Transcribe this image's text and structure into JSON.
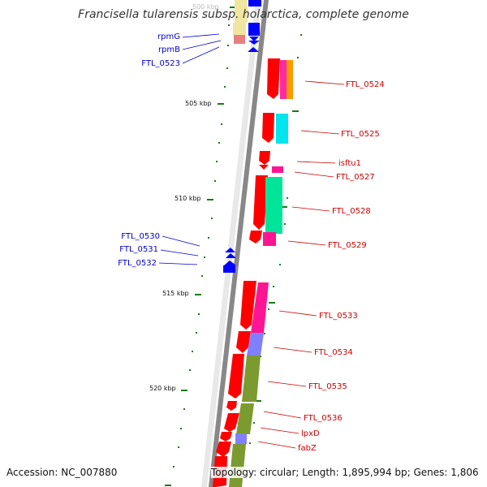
{
  "title": "Francisella tularensis subsp. holarctica, complete genome",
  "footer": {
    "accession": "Accession: NC_007880",
    "topology": "Topology: circular; Length: 1,895,994 bp; Genes: 1,806"
  },
  "colors": {
    "backbone": "#888888",
    "tick": "#1a7a1a",
    "gene_forward": "#ff0000",
    "left_label": "#0000cc",
    "right_label": "#cc0000"
  },
  "scale_labels": [
    "500 kbp",
    "505 kbp",
    "510 kbp",
    "515 kbp",
    "520 kbp"
  ],
  "left_labels": [
    "rpmG",
    "rpmB",
    "FTL_0523",
    "FTL_0530",
    "FTL_0531",
    "FTL_0532"
  ],
  "right_labels": [
    "FTL_0524",
    "FTL_0525",
    "isftu1",
    "FTL_0527",
    "FTL_0528",
    "FTL_0529",
    "FTL_0533",
    "FTL_0534",
    "FTL_0535",
    "FTL_0536",
    "lpxD",
    "fabZ"
  ],
  "cog_colors": {
    "cream": "#f0e6a0",
    "pink_light": "#e88080",
    "magenta": "#ff2aa0",
    "orange": "#ff9900",
    "cyan": "#00e5ee",
    "teal": "#00e59a",
    "hotpink": "#ff1493",
    "lavender": "#8080ff",
    "olive": "#7b9a30",
    "blue": "#0000ff"
  }
}
